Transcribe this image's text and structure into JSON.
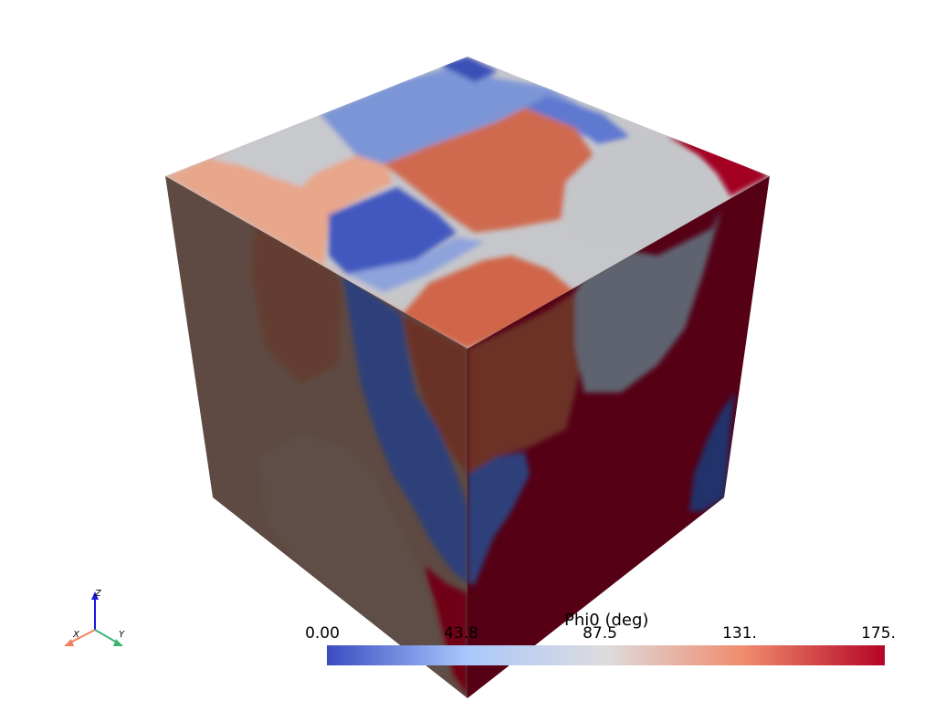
{
  "scalar_bar": {
    "title": "Phi0 (deg)",
    "ticks": [
      "0.00",
      "43.8",
      "87.5",
      "131.",
      "175."
    ],
    "range": [
      0,
      175
    ],
    "colormap": [
      "#3b4cc0",
      "#aac7fd",
      "#dddcdc",
      "#f7b89c",
      "#b40426"
    ]
  },
  "orientation_axes": {
    "x_label": "X",
    "y_label": "Y",
    "z_label": "Z",
    "x_color": "#f08060",
    "y_color": "#3cb371",
    "z_color": "#1a1adc"
  },
  "colors": {
    "background": "#ffffff",
    "grain_deep_blue": "#3b4cc0",
    "grain_light_blue": "#7b95d8",
    "grain_gray": "#c5c8cd",
    "grain_peach": "#e7a488",
    "grain_orange": "#d26e52",
    "grain_red": "#a50026",
    "left_face_shade": "#5e4a42",
    "right_face_shade": "#560016"
  }
}
